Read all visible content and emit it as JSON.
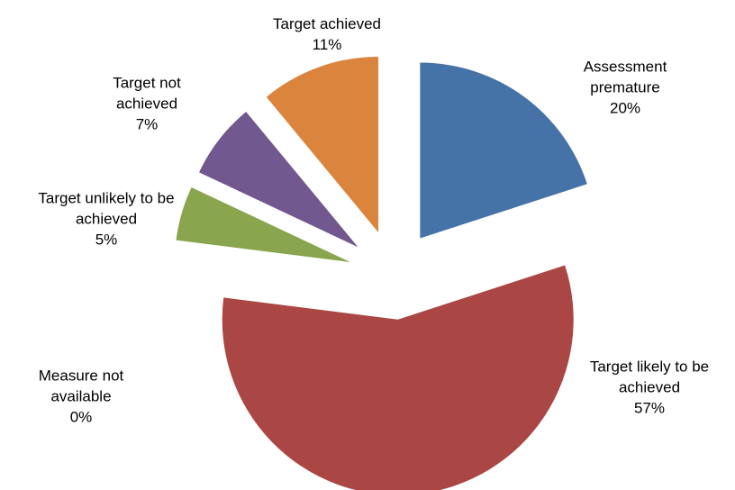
{
  "chart_data": {
    "type": "pie",
    "categories": [
      "Assessment premature",
      "Target likely to be achieved",
      "Measure not available",
      "Target unlikely to be achieved",
      "Target not achieved",
      "Target achieved"
    ],
    "values": [
      20,
      57,
      0,
      5,
      7,
      11
    ],
    "value_labels": [
      "20%",
      "57%",
      "0%",
      "5%",
      "7%",
      "11%"
    ],
    "colors": [
      "#4572a7",
      "#aa4643",
      "#4198af",
      "#89a54e",
      "#71588f",
      "#db843d"
    ],
    "exploded": true
  }
}
